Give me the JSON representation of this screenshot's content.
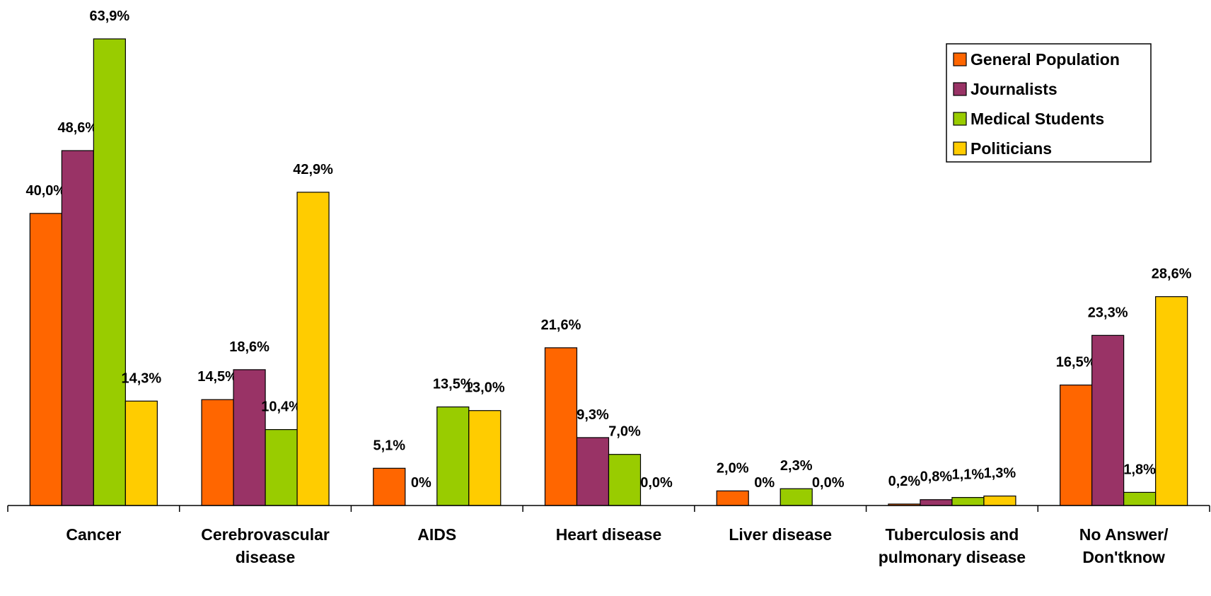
{
  "chart_data": {
    "type": "bar",
    "categories": [
      "Cancer",
      "Cerebrovascular disease",
      "AIDS",
      "Heart disease",
      "Liver disease",
      "Tuberculosis and pulmonary disease",
      "No Answer/ Don'tknow"
    ],
    "series": [
      {
        "name": "General Population",
        "color": "#FF6600",
        "values": [
          40.0,
          14.5,
          5.1,
          21.6,
          2.0,
          0.2,
          16.5
        ],
        "value_labels": [
          "40,0%",
          "14,5%",
          "5,1%",
          "21,6%",
          "2,0%",
          "0,2%",
          "16,5%"
        ]
      },
      {
        "name": "Journalists",
        "color": "#993366",
        "values": [
          48.6,
          18.6,
          0,
          9.3,
          0,
          0.8,
          23.3
        ],
        "value_labels": [
          "48,6%",
          "18,6%",
          "0%",
          "9,3%",
          "0%",
          "0,8%",
          "23,3%"
        ]
      },
      {
        "name": "Medical Students",
        "color": "#99CC00",
        "values": [
          63.9,
          10.4,
          13.5,
          7.0,
          2.3,
          1.1,
          1.8
        ],
        "value_labels": [
          "63,9%",
          "10,4%",
          "13,5%",
          "7,0%",
          "2,3%",
          "1,1%",
          "1,8%"
        ]
      },
      {
        "name": "Politicians",
        "color": "#FFCC00",
        "values": [
          14.3,
          42.9,
          13.0,
          0.0,
          0.0,
          1.3,
          28.6
        ],
        "value_labels": [
          "14,3%",
          "42,9%",
          "13,0%",
          "0,0%",
          "0,0%",
          "1,3%",
          "28,6%"
        ]
      }
    ],
    "legend": "upper right"
  }
}
